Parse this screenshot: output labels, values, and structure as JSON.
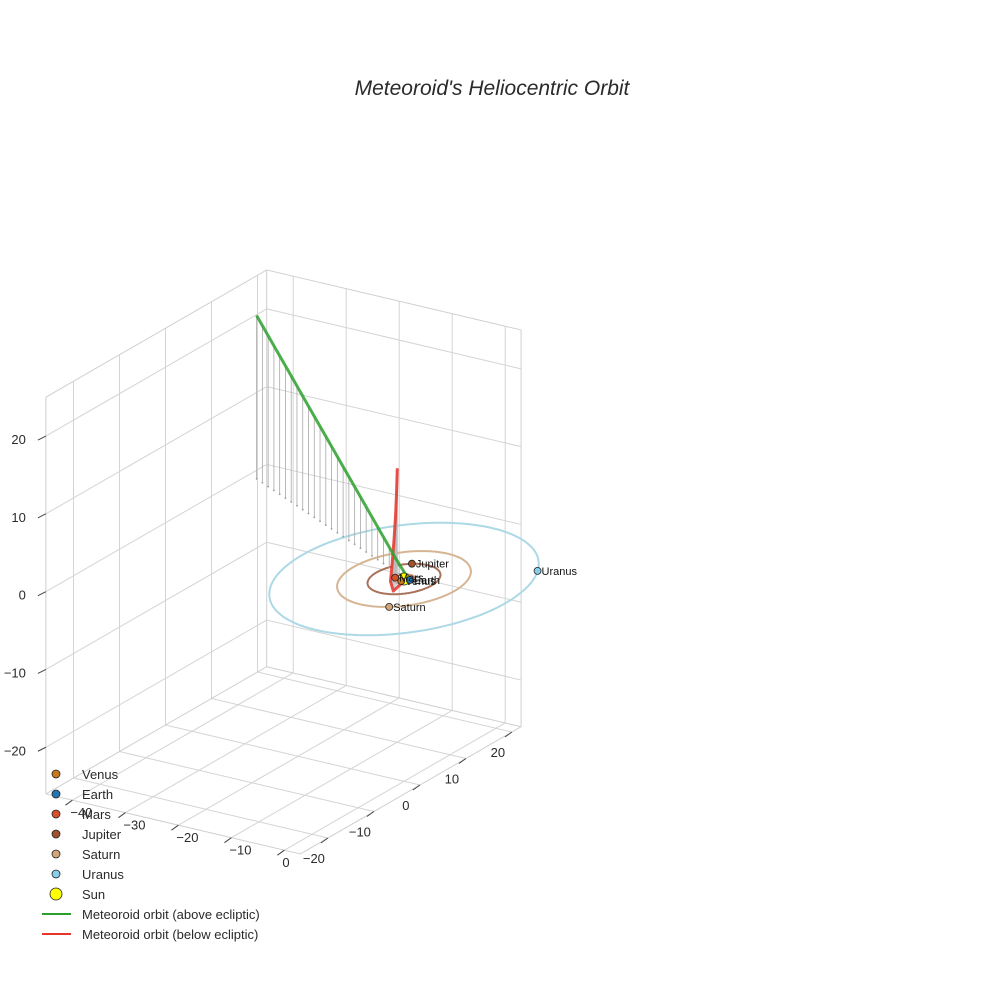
{
  "chart_data": {
    "type": "scatter3d",
    "title": "Meteoroid's Heliocentric Orbit",
    "axes": {
      "x": {
        "ticks": [
          -40,
          -30,
          -20,
          -10,
          0
        ],
        "range": [
          -45,
          3
        ]
      },
      "y": {
        "ticks": [
          -20,
          -10,
          0,
          10,
          20
        ],
        "range": [
          -26,
          22
        ]
      },
      "z": {
        "ticks": [
          20,
          10,
          0,
          -10,
          -20
        ],
        "range": [
          -26,
          25
        ]
      }
    },
    "planets": [
      {
        "name": "Venus",
        "color": "#c8781e",
        "orbit_color": "#caa27a",
        "radius_au": 0.72,
        "position": [
          0.1,
          -0.72,
          0
        ]
      },
      {
        "name": "Earth",
        "color": "#1f77b4",
        "orbit_color": "#7fb2d6",
        "radius_au": 1.0,
        "position": [
          1.0,
          0.1,
          0
        ]
      },
      {
        "name": "Mars",
        "color": "#d6502a",
        "orbit_color": "#e19a84",
        "radius_au": 1.52,
        "position": [
          -1.5,
          -0.2,
          0
        ]
      },
      {
        "name": "Jupiter",
        "color": "#a0522d",
        "orbit_color": "#a9725a",
        "radius_au": 5.2,
        "position": [
          -2.5,
          4.6,
          0
        ]
      },
      {
        "name": "Saturn",
        "color": "#d2a679",
        "orbit_color": "#d5b593",
        "radius_au": 9.54,
        "position": [
          4.5,
          -8.4,
          0
        ]
      },
      {
        "name": "Uranus",
        "color": "#87ceeb",
        "orbit_color": "#add8e6",
        "radius_au": 19.2,
        "position": [
          16.0,
          10.6,
          0
        ]
      }
    ],
    "sun": {
      "name": "Sun",
      "color": "#ffff00",
      "position": [
        0,
        0,
        0
      ]
    },
    "meteoroid": {
      "above_name": "Meteoroid orbit (above ecliptic)",
      "above_color": "#2ca02c",
      "below_name": "Meteoroid orbit (below ecliptic)",
      "below_color": "#e8342a",
      "above": [
        [
          0.4,
          0.2,
          0.3
        ],
        [
          -3,
          1.5,
          1.8
        ],
        [
          -8,
          3.5,
          4.2
        ],
        [
          -13,
          5.5,
          6.6
        ],
        [
          -18,
          7.5,
          9.0
        ],
        [
          -23,
          9.5,
          11.4
        ],
        [
          -28,
          11.5,
          13.8
        ],
        [
          -33,
          13.5,
          16.2
        ],
        [
          -38,
          15.5,
          18.6
        ],
        [
          -43,
          17.5,
          21.0
        ]
      ],
      "below": [
        [
          0.4,
          0.2,
          0.1
        ],
        [
          0.0,
          -1.0,
          -0.5
        ],
        [
          -0.8,
          -1.4,
          -1.2
        ],
        [
          -1.6,
          -1.1,
          -0.2
        ],
        [
          -1.7,
          -0.6,
          2.0
        ],
        [
          -1.6,
          -0.3,
          5.0
        ],
        [
          -1.5,
          -0.1,
          8.0
        ],
        [
          -1.4,
          0.0,
          11.0
        ],
        [
          -1.3,
          0.05,
          14.0
        ]
      ]
    },
    "legend": [
      {
        "label": "Venus",
        "kind": "marker",
        "color": "#c8781e"
      },
      {
        "label": "Earth",
        "kind": "marker",
        "color": "#1f77b4"
      },
      {
        "label": "Mars",
        "kind": "marker",
        "color": "#d6502a"
      },
      {
        "label": "Jupiter",
        "kind": "marker",
        "color": "#a0522d"
      },
      {
        "label": "Saturn",
        "kind": "marker",
        "color": "#d2a679"
      },
      {
        "label": "Uranus",
        "kind": "marker",
        "color": "#87ceeb"
      },
      {
        "label": "Sun",
        "kind": "sun",
        "color": "#ffff00"
      },
      {
        "label": "Meteoroid orbit (above ecliptic)",
        "kind": "line",
        "color": "#2ca02c"
      },
      {
        "label": "Meteoroid orbit (below ecliptic)",
        "kind": "line",
        "color": "#e8342a"
      }
    ],
    "legend_position": "bottom-left",
    "grid": true
  }
}
